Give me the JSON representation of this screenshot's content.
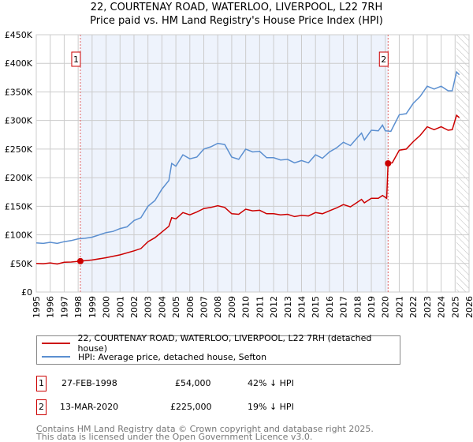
{
  "chart_data": {
    "type": "line",
    "title": "22, COURTENAY ROAD, WATERLOO, LIVERPOOL, L22 7RH",
    "subtitle": "Price paid vs. HM Land Registry's House Price Index (HPI)",
    "xlim": [
      1995,
      2026
    ],
    "ylim": [
      0,
      450000
    ],
    "x_ticks": [
      "1995",
      "1996",
      "1997",
      "1998",
      "1999",
      "2000",
      "2001",
      "2002",
      "2003",
      "2004",
      "2005",
      "2006",
      "2007",
      "2008",
      "2009",
      "2010",
      "2011",
      "2012",
      "2013",
      "2014",
      "2015",
      "2016",
      "2017",
      "2018",
      "2019",
      "2020",
      "2021",
      "2022",
      "2023",
      "2024",
      "2025",
      "2026"
    ],
    "y_ticks": [
      {
        "v": 0,
        "l": "£0"
      },
      {
        "v": 50000,
        "l": "£50K"
      },
      {
        "v": 100000,
        "l": "£100K"
      },
      {
        "v": 150000,
        "l": "£150K"
      },
      {
        "v": 200000,
        "l": "£200K"
      },
      {
        "v": 250000,
        "l": "£250K"
      },
      {
        "v": 300000,
        "l": "£300K"
      },
      {
        "v": 350000,
        "l": "£350K"
      },
      {
        "v": 400000,
        "l": "£400K"
      },
      {
        "v": 450000,
        "l": "£450K"
      }
    ],
    "grid": true,
    "series": [
      {
        "name": "22, COURTENAY ROAD, WATERLOO, LIVERPOOL, L22 7RH (detached house)",
        "color": "#cc0000",
        "x": [
          1995,
          1995.5,
          1996,
          1996.5,
          1997,
          1997.5,
          1998.16,
          1999,
          2000,
          2001,
          2002,
          2002.5,
          2003,
          2003.5,
          2004,
          2004.5,
          2004.7,
          2005,
          2005.5,
          2006,
          2006.5,
          2007,
          2007.5,
          2008,
          2008.5,
          2009,
          2009.5,
          2010,
          2010.5,
          2011,
          2011.5,
          2012,
          2012.5,
          2013,
          2013.5,
          2014,
          2014.5,
          2015,
          2015.5,
          2016,
          2016.5,
          2017,
          2017.5,
          2018,
          2018.3,
          2018.5,
          2019,
          2019.5,
          2019.8,
          2020.1,
          2020.2,
          2020.5,
          2021,
          2021.5,
          2022,
          2022.5,
          2023,
          2023.5,
          2024,
          2024.5,
          2024.8,
          2025.1,
          2025.3
        ],
        "y": [
          50000,
          49500,
          51000,
          49000,
          52000,
          52500,
          54000,
          56000,
          60000,
          65000,
          72000,
          76000,
          88000,
          95000,
          105000,
          115000,
          130000,
          128000,
          139000,
          135000,
          140000,
          146000,
          148000,
          151000,
          148000,
          137000,
          136000,
          145000,
          142000,
          143000,
          137000,
          137000,
          135000,
          136000,
          132000,
          134000,
          133000,
          139000,
          137000,
          142000,
          147000,
          153000,
          149000,
          157000,
          162000,
          156000,
          164000,
          164000,
          169000,
          164000,
          225000,
          226000,
          248000,
          250000,
          263000,
          274000,
          289000,
          284000,
          289000,
          283000,
          284000,
          309000,
          305000
        ]
      },
      {
        "name": "HPI: Average price, detached house, Sefton",
        "color": "#5b8fd0",
        "x": [
          1995,
          1995.5,
          1996,
          1996.5,
          1997,
          1997.5,
          1998,
          1998.5,
          1999,
          1999.5,
          2000,
          2000.5,
          2001,
          2001.5,
          2002,
          2002.5,
          2003,
          2003.5,
          2004,
          2004.5,
          2004.7,
          2005,
          2005.5,
          2006,
          2006.5,
          2007,
          2007.5,
          2008,
          2008.5,
          2009,
          2009.5,
          2010,
          2010.5,
          2011,
          2011.5,
          2012,
          2012.5,
          2013,
          2013.5,
          2014,
          2014.5,
          2015,
          2015.5,
          2016,
          2016.5,
          2017,
          2017.5,
          2018,
          2018.3,
          2018.5,
          2019,
          2019.5,
          2019.8,
          2020,
          2020.4,
          2021,
          2021.5,
          2022,
          2022.5,
          2023,
          2023.5,
          2024,
          2024.5,
          2024.8,
          2025.1,
          2025.3
        ],
        "y": [
          86000,
          85000,
          87000,
          85000,
          88000,
          90000,
          93000,
          94000,
          96000,
          100000,
          104000,
          106000,
          111000,
          114000,
          125000,
          130000,
          150000,
          160000,
          180000,
          195000,
          225000,
          220000,
          240000,
          233000,
          236000,
          250000,
          254000,
          260000,
          258000,
          236000,
          232000,
          250000,
          245000,
          246000,
          235000,
          235000,
          231000,
          232000,
          226000,
          230000,
          226000,
          240000,
          234000,
          245000,
          252000,
          262000,
          256000,
          270000,
          278000,
          266000,
          283000,
          282000,
          292000,
          282000,
          281000,
          310000,
          312000,
          330000,
          342000,
          360000,
          355000,
          360000,
          352000,
          352000,
          385000,
          380000
        ]
      }
    ],
    "sales": [
      {
        "label": "1",
        "x": 1998.16,
        "y": 54000
      },
      {
        "label": "2",
        "x": 2020.2,
        "y": 225000
      }
    ],
    "shaded_between": [
      1998.16,
      2020.2
    ],
    "hatched_from": 2025.1
  },
  "legend": {
    "red": "22, COURTENAY ROAD, WATERLOO, LIVERPOOL, L22 7RH (detached house)",
    "blue": "HPI: Average price, detached house, Sefton"
  },
  "transactions": [
    {
      "num": "1",
      "date": "27-FEB-1998",
      "price": "£54,000",
      "hpi": "42% ↓ HPI"
    },
    {
      "num": "2",
      "date": "13-MAR-2020",
      "price": "£225,000",
      "hpi": "19% ↓ HPI"
    }
  ],
  "footer": {
    "line1": "Contains HM Land Registry data © Crown copyright and database right 2025.",
    "line2": "This data is licensed under the Open Government Licence v3.0."
  }
}
